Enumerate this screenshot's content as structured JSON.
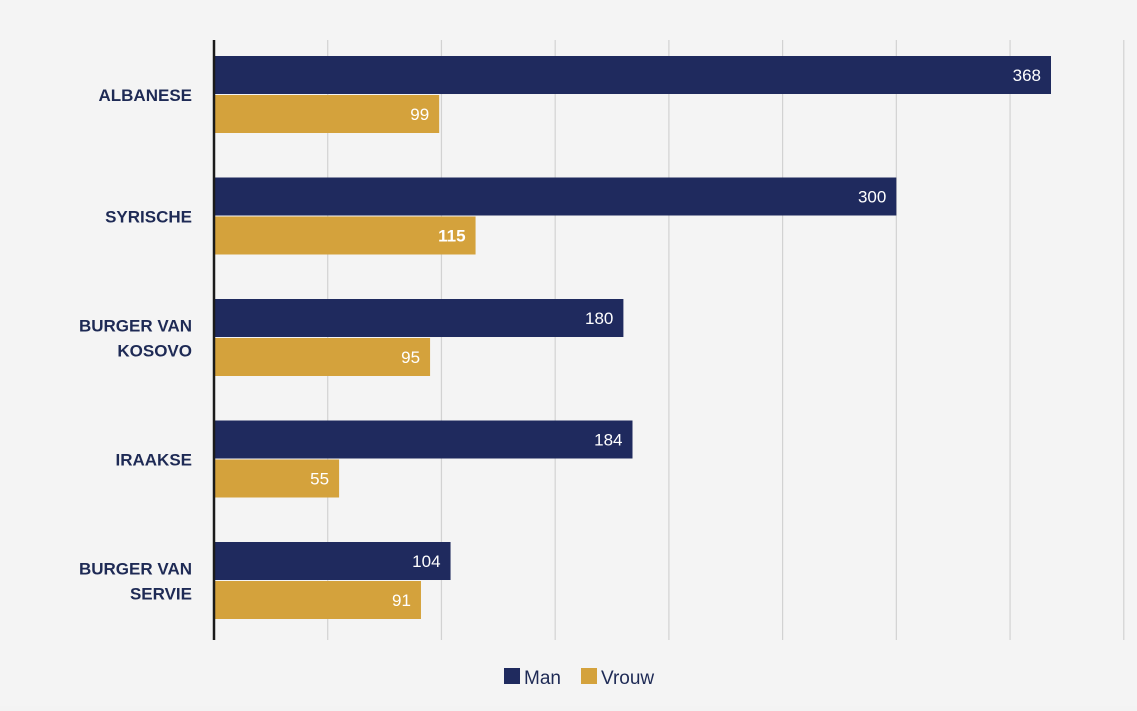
{
  "chart_data": {
    "type": "bar",
    "orientation": "horizontal",
    "categories": [
      [
        "ALBANESE"
      ],
      [
        "SYRISCHE"
      ],
      [
        "BURGER VAN",
        "KOSOVO"
      ],
      [
        "IRAAKSE"
      ],
      [
        "BURGER VAN",
        "SERVIE"
      ]
    ],
    "series": [
      {
        "name": "Man",
        "color": "#1f2a5e",
        "values": [
          368,
          300,
          180,
          184,
          104
        ],
        "labels": [
          "368",
          "300",
          "180",
          "184",
          "104"
        ]
      },
      {
        "name": "Vrouw",
        "color": "#d4a23c",
        "values": [
          99,
          115,
          95,
          55,
          91
        ],
        "labels": [
          "99",
          "115",
          "95",
          "55",
          "91"
        ]
      }
    ],
    "xlim": [
      0,
      400
    ],
    "grid": true,
    "legend_position": "bottom"
  },
  "legend": {
    "man_label": "Man",
    "vrouw_label": "Vrouw"
  }
}
